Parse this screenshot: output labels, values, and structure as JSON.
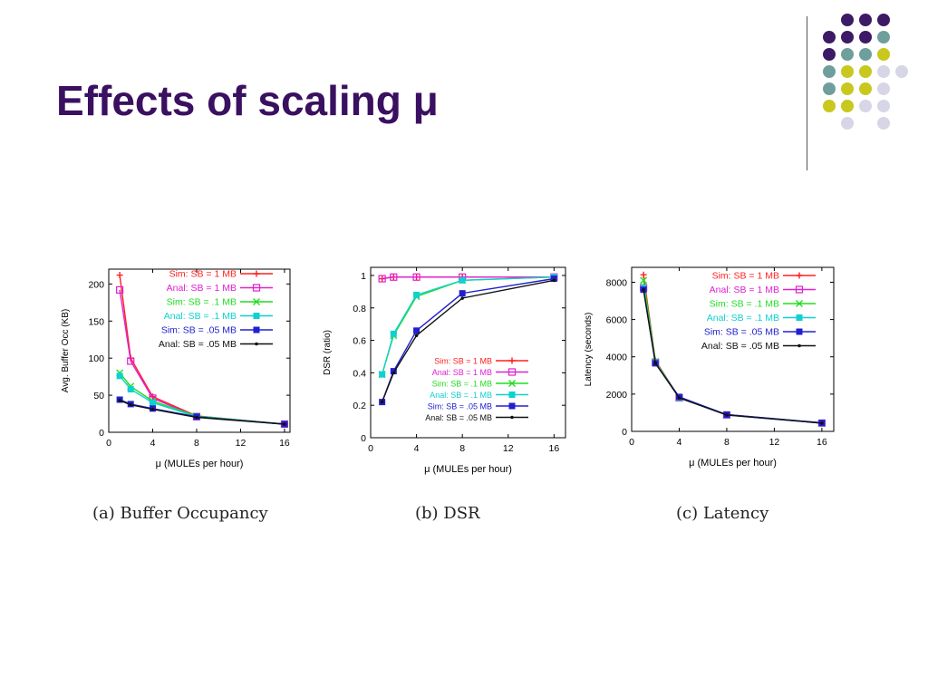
{
  "slide": {
    "title": "Effects of scaling μ",
    "dot_colors": {
      "purple": "#3d1a66",
      "teal": "#6f9f9c",
      "yellow": "#c8c81e",
      "lavender": "#d6d6e6"
    }
  },
  "colors": {
    "Sim: SB = 1 MB": "#ff2020",
    "Anal: SB = 1 MB": "#e020d0",
    "Sim: SB = .1 MB": "#20dd20",
    "Anal: SB = .1 MB": "#10d0d0",
    "Sim: SB = .05 MB": "#2020d0",
    "Anal: SB = .05 MB": "#111111"
  },
  "chart_data": [
    {
      "type": "line",
      "caption": "(a) Buffer Occupancy",
      "xlabel": "μ (MULEs per hour)",
      "ylabel": "Avg. Buffer Occ (KB)",
      "xlim": [
        0,
        16.5
      ],
      "ylim": [
        0,
        220
      ],
      "xticks": [
        0,
        4,
        8,
        12,
        16
      ],
      "yticks": [
        0,
        50,
        100,
        150,
        200
      ],
      "legend": "top-right",
      "x": [
        1,
        2,
        4,
        8,
        16
      ],
      "series": [
        {
          "name": "Sim: SB = 1 MB",
          "values": [
            212,
            100,
            48,
            22,
            11
          ]
        },
        {
          "name": "Anal: SB = 1 MB",
          "values": [
            192,
            96,
            46,
            21,
            11
          ]
        },
        {
          "name": "Sim: SB = .1 MB",
          "values": [
            80,
            62,
            42,
            22,
            11
          ]
        },
        {
          "name": "Anal: SB = .1 MB",
          "values": [
            76,
            58,
            40,
            21,
            11
          ]
        },
        {
          "name": "Sim: SB = .05 MB",
          "values": [
            44,
            38,
            32,
            21,
            11
          ]
        },
        {
          "name": "Anal: SB = .05 MB",
          "values": [
            43,
            37,
            31,
            20,
            11
          ]
        }
      ]
    },
    {
      "type": "line",
      "caption": "(b) DSR",
      "xlabel": "μ (MULEs per hour)",
      "ylabel": "DSR (ratio)",
      "xlim": [
        0,
        17
      ],
      "ylim": [
        0,
        1.05
      ],
      "xticks": [
        0,
        4,
        8,
        12,
        16
      ],
      "yticks": [
        0,
        0.2,
        0.4,
        0.6,
        0.8,
        1
      ],
      "legend": "bottom-right",
      "x": [
        1,
        2,
        4,
        8,
        16
      ],
      "series": [
        {
          "name": "Sim: SB = 1 MB",
          "values": [
            0.98,
            0.99,
            0.99,
            0.99,
            0.99
          ]
        },
        {
          "name": "Anal: SB = 1 MB",
          "values": [
            0.98,
            0.99,
            0.99,
            0.99,
            0.99
          ]
        },
        {
          "name": "Sim: SB = .1 MB",
          "values": [
            0.39,
            0.63,
            0.87,
            0.97,
            0.99
          ]
        },
        {
          "name": "Anal: SB = .1 MB",
          "values": [
            0.39,
            0.64,
            0.88,
            0.97,
            0.99
          ]
        },
        {
          "name": "Sim: SB = .05 MB",
          "values": [
            0.22,
            0.41,
            0.66,
            0.89,
            0.98
          ]
        },
        {
          "name": "Anal: SB = .05 MB",
          "values": [
            0.22,
            0.4,
            0.63,
            0.86,
            0.97
          ]
        }
      ]
    },
    {
      "type": "line",
      "caption": "(c) Latency",
      "xlabel": "μ (MULEs per hour)",
      "ylabel": "Latency (seconds)",
      "xlim": [
        0,
        17
      ],
      "ylim": [
        0,
        8800
      ],
      "xticks": [
        0,
        4,
        8,
        12,
        16
      ],
      "yticks": [
        0,
        2000,
        4000,
        6000,
        8000
      ],
      "legend": "top-right",
      "x": [
        1,
        2,
        4,
        8,
        16
      ],
      "series": [
        {
          "name": "Sim: SB = 1 MB",
          "values": [
            8400,
            3800,
            1800,
            900,
            450
          ]
        },
        {
          "name": "Anal: SB = 1 MB",
          "values": [
            7700,
            3700,
            1800,
            880,
            440
          ]
        },
        {
          "name": "Sim: SB = .1 MB",
          "values": [
            8100,
            3750,
            1820,
            890,
            450
          ]
        },
        {
          "name": "Anal: SB = .1 MB",
          "values": [
            7700,
            3700,
            1800,
            880,
            440
          ]
        },
        {
          "name": "Sim: SB = .05 MB",
          "values": [
            7600,
            3650,
            1850,
            900,
            460
          ]
        },
        {
          "name": "Anal: SB = .05 MB",
          "values": [
            7600,
            3650,
            1800,
            880,
            440
          ]
        }
      ]
    }
  ]
}
